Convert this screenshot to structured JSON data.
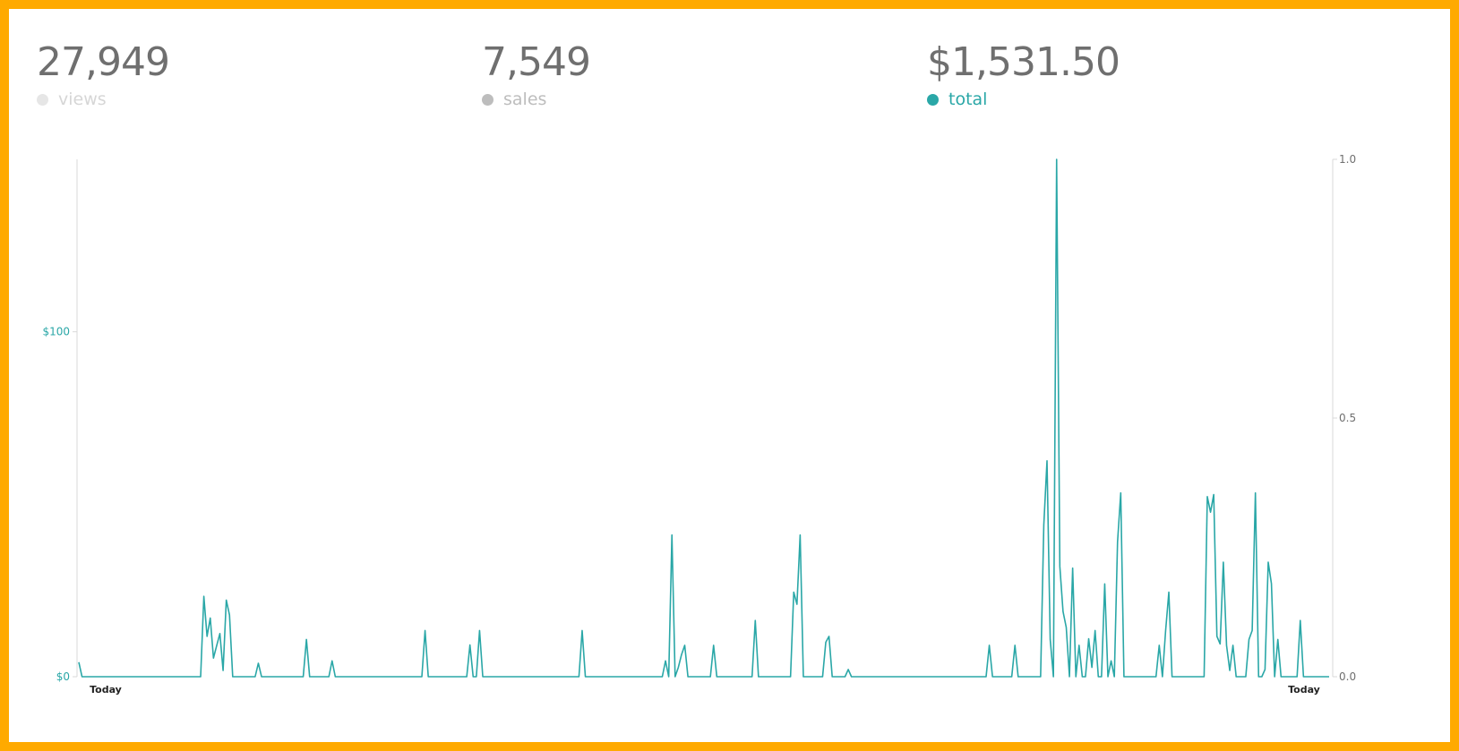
{
  "summary": {
    "views": {
      "value": "27,949",
      "label": "views"
    },
    "sales": {
      "value": "7,549",
      "label": "sales"
    },
    "total": {
      "value": "$1,531.50",
      "label": "total"
    }
  },
  "colors": {
    "frame": "#FFAA00",
    "views": "#e6e6e6",
    "sales": "#bdbdbd",
    "total": "#2aa7a7",
    "axis": "#d9d9d9",
    "number": "#6f6f6f"
  },
  "chart_data": {
    "type": "line",
    "title": "",
    "xlabel": "",
    "ylabel": "",
    "x_tick_labels": [
      "Today",
      "Today"
    ],
    "left_axis": {
      "ticks": [
        "$0",
        "$100"
      ],
      "tick_values": [
        0,
        100
      ],
      "ylim": [
        0,
        150
      ]
    },
    "right_axis": {
      "ticks": [
        "0.0",
        "0.5",
        "1.0"
      ],
      "tick_values": [
        0,
        0.5,
        1.0
      ],
      "ylim": [
        0,
        1
      ]
    },
    "grid": false,
    "series": [
      {
        "name": "total",
        "axis": "left",
        "values": [
          4.2,
          0,
          0,
          0,
          0,
          0,
          0,
          0,
          0,
          0,
          0,
          0,
          0,
          0,
          0,
          0,
          0,
          0,
          0,
          0,
          0,
          0,
          0,
          0,
          0,
          0,
          0,
          0,
          0,
          0,
          0,
          0,
          0,
          0,
          0,
          0,
          0,
          0,
          0,
          23.3,
          11.7,
          17,
          5.4,
          9,
          12.5,
          1.8,
          22.2,
          17.9,
          0,
          0,
          0,
          0,
          0,
          0,
          0,
          0,
          3.9,
          0,
          0,
          0,
          0,
          0,
          0,
          0,
          0,
          0,
          0,
          0,
          0,
          0,
          0,
          10.8,
          0,
          0,
          0,
          0,
          0,
          0,
          0,
          4.6,
          0,
          0,
          0,
          0,
          0,
          0,
          0,
          0,
          0,
          0,
          0,
          0,
          0,
          0,
          0,
          0,
          0,
          0,
          0,
          0,
          0,
          0,
          0,
          0,
          0,
          0,
          0,
          0,
          13.4,
          0,
          0,
          0,
          0,
          0,
          0,
          0,
          0,
          0,
          0,
          0,
          0,
          0,
          9.2,
          0,
          0,
          13.4,
          0,
          0,
          0,
          0,
          0,
          0,
          0,
          0,
          0,
          0,
          0,
          0,
          0,
          0,
          0,
          0,
          0,
          0,
          0,
          0,
          0,
          0,
          0,
          0,
          0,
          0,
          0,
          0,
          0,
          0,
          0,
          13.4,
          0,
          0,
          0,
          0,
          0,
          0,
          0,
          0,
          0,
          0,
          0,
          0,
          0,
          0,
          0,
          0,
          0,
          0,
          0,
          0,
          0,
          0,
          0,
          0,
          0,
          4.6,
          0,
          41.1,
          0,
          2.7,
          6.4,
          9.1,
          0,
          0,
          0,
          0,
          0,
          0,
          0,
          0,
          9.1,
          0,
          0,
          0,
          0,
          0,
          0,
          0,
          0,
          0,
          0,
          0,
          0,
          16.3,
          0,
          0,
          0,
          0,
          0,
          0,
          0,
          0,
          0,
          0,
          0,
          24.5,
          21,
          41.1,
          0,
          0,
          0,
          0,
          0,
          0,
          0,
          10,
          11.7,
          0,
          0,
          0,
          0,
          0,
          2.1,
          0,
          0,
          0,
          0,
          0,
          0,
          0,
          0,
          0,
          0,
          0,
          0,
          0,
          0,
          0,
          0,
          0,
          0,
          0,
          0,
          0,
          0,
          0,
          0,
          0,
          0,
          0,
          0,
          0,
          0,
          0,
          0,
          0,
          0,
          0,
          0,
          0,
          0,
          0,
          0,
          0,
          0,
          0,
          9.1,
          0,
          0,
          0,
          0,
          0,
          0,
          0,
          9.1,
          0,
          0,
          0,
          0,
          0,
          0,
          0,
          0,
          44,
          62.6,
          10.8,
          0,
          150,
          32,
          18.9,
          14.3,
          0,
          31.5,
          0,
          9.1,
          0,
          0,
          11,
          2.7,
          13.4,
          0,
          0,
          26.9,
          0,
          4.6,
          0,
          39,
          53.3,
          0,
          0,
          0,
          0,
          0,
          0,
          0,
          0,
          0,
          0,
          0,
          9.1,
          0,
          13.4,
          24.5,
          0,
          0,
          0,
          0,
          0,
          0,
          0,
          0,
          0,
          0,
          0,
          52.2,
          47.7,
          52.8,
          11.7,
          9.5,
          33.2,
          9.1,
          1.8,
          9.1,
          0,
          0,
          0,
          0,
          10.8,
          13.4,
          53.3,
          0,
          0,
          2.1,
          33.2,
          27,
          0,
          10.8,
          0,
          0,
          0,
          0,
          0,
          0,
          16.3,
          0,
          0,
          0,
          0,
          0,
          0,
          0,
          0,
          0
        ]
      }
    ]
  }
}
